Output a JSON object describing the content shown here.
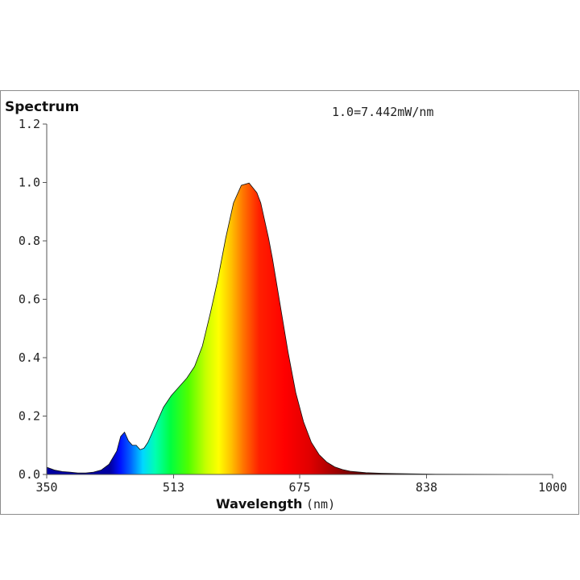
{
  "chart_data": {
    "type": "area",
    "title": "Spectrum",
    "scale_note": "1.0=7.442mW/nm",
    "xlabel": "Wavelength",
    "xunit": "(nm)",
    "xlim": [
      350,
      1000
    ],
    "ylim": [
      0,
      1.2
    ],
    "x_ticks": [
      "350",
      "513",
      "675",
      "838",
      "1000"
    ],
    "y_ticks": [
      "0.0",
      "0.2",
      "0.4",
      "0.6",
      "0.8",
      "1.0",
      "1.2"
    ],
    "grid": false,
    "x": [
      350,
      360,
      370,
      380,
      390,
      400,
      410,
      420,
      430,
      440,
      445,
      450,
      455,
      460,
      465,
      470,
      475,
      480,
      490,
      500,
      510,
      520,
      530,
      540,
      550,
      560,
      570,
      580,
      590,
      600,
      610,
      620,
      625,
      630,
      635,
      640,
      650,
      660,
      670,
      680,
      690,
      700,
      710,
      720,
      730,
      740,
      760,
      780,
      800,
      850,
      900,
      950,
      1000
    ],
    "y": [
      0.025,
      0.015,
      0.01,
      0.008,
      0.005,
      0.005,
      0.008,
      0.015,
      0.035,
      0.08,
      0.13,
      0.145,
      0.115,
      0.1,
      0.1,
      0.085,
      0.09,
      0.11,
      0.17,
      0.23,
      0.27,
      0.3,
      0.33,
      0.37,
      0.44,
      0.55,
      0.67,
      0.81,
      0.93,
      0.99,
      0.998,
      0.965,
      0.93,
      0.87,
      0.81,
      0.74,
      0.58,
      0.42,
      0.28,
      0.18,
      0.11,
      0.068,
      0.042,
      0.026,
      0.017,
      0.011,
      0.006,
      0.004,
      0.003,
      0.001,
      0.0005,
      0.0002,
      0.0
    ]
  }
}
